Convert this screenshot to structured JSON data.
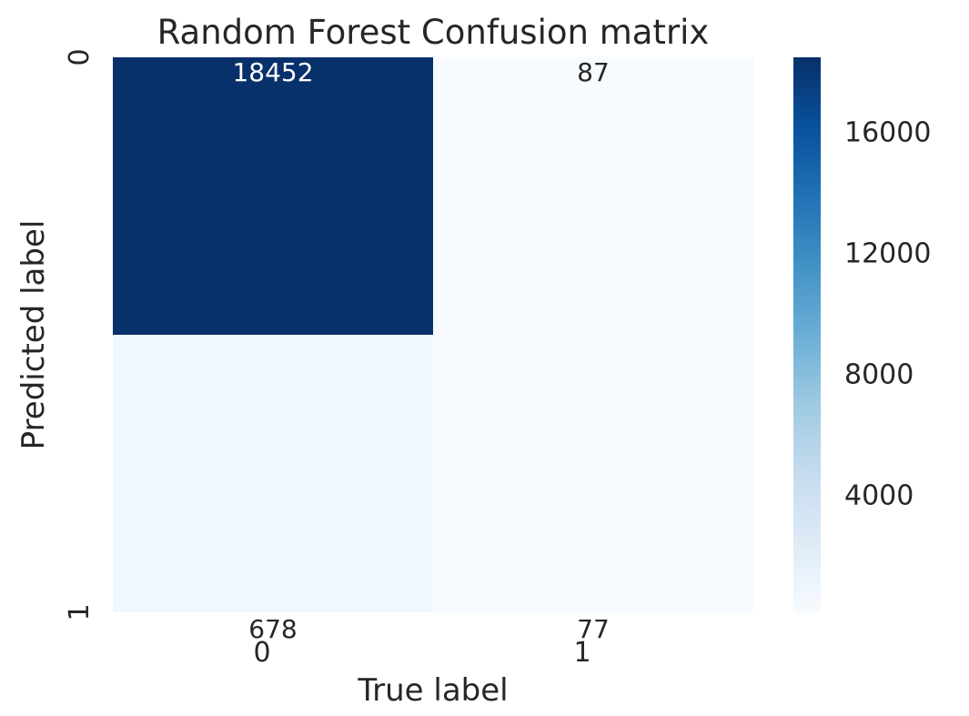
{
  "chart_data": {
    "type": "heatmap",
    "title": "Random Forest Confusion matrix",
    "xlabel": "True label",
    "ylabel": "Predicted label",
    "x_tick_labels": [
      "0",
      "1"
    ],
    "y_tick_labels": [
      "0",
      "1"
    ],
    "matrix": [
      [
        18452,
        87
      ],
      [
        678,
        77
      ]
    ],
    "colormap": "Blues",
    "colormap_stops": [
      "#f7fbff",
      "#deebf7",
      "#c6dbef",
      "#9ecae1",
      "#6baed6",
      "#4292c6",
      "#2171b5",
      "#08519c",
      "#08306b"
    ],
    "value_range": [
      77,
      18452
    ],
    "colorbar_ticks": [
      4000,
      8000,
      12000,
      16000
    ],
    "annotation_light_color": "#ffffff",
    "annotation_dark_color": "#262626"
  }
}
